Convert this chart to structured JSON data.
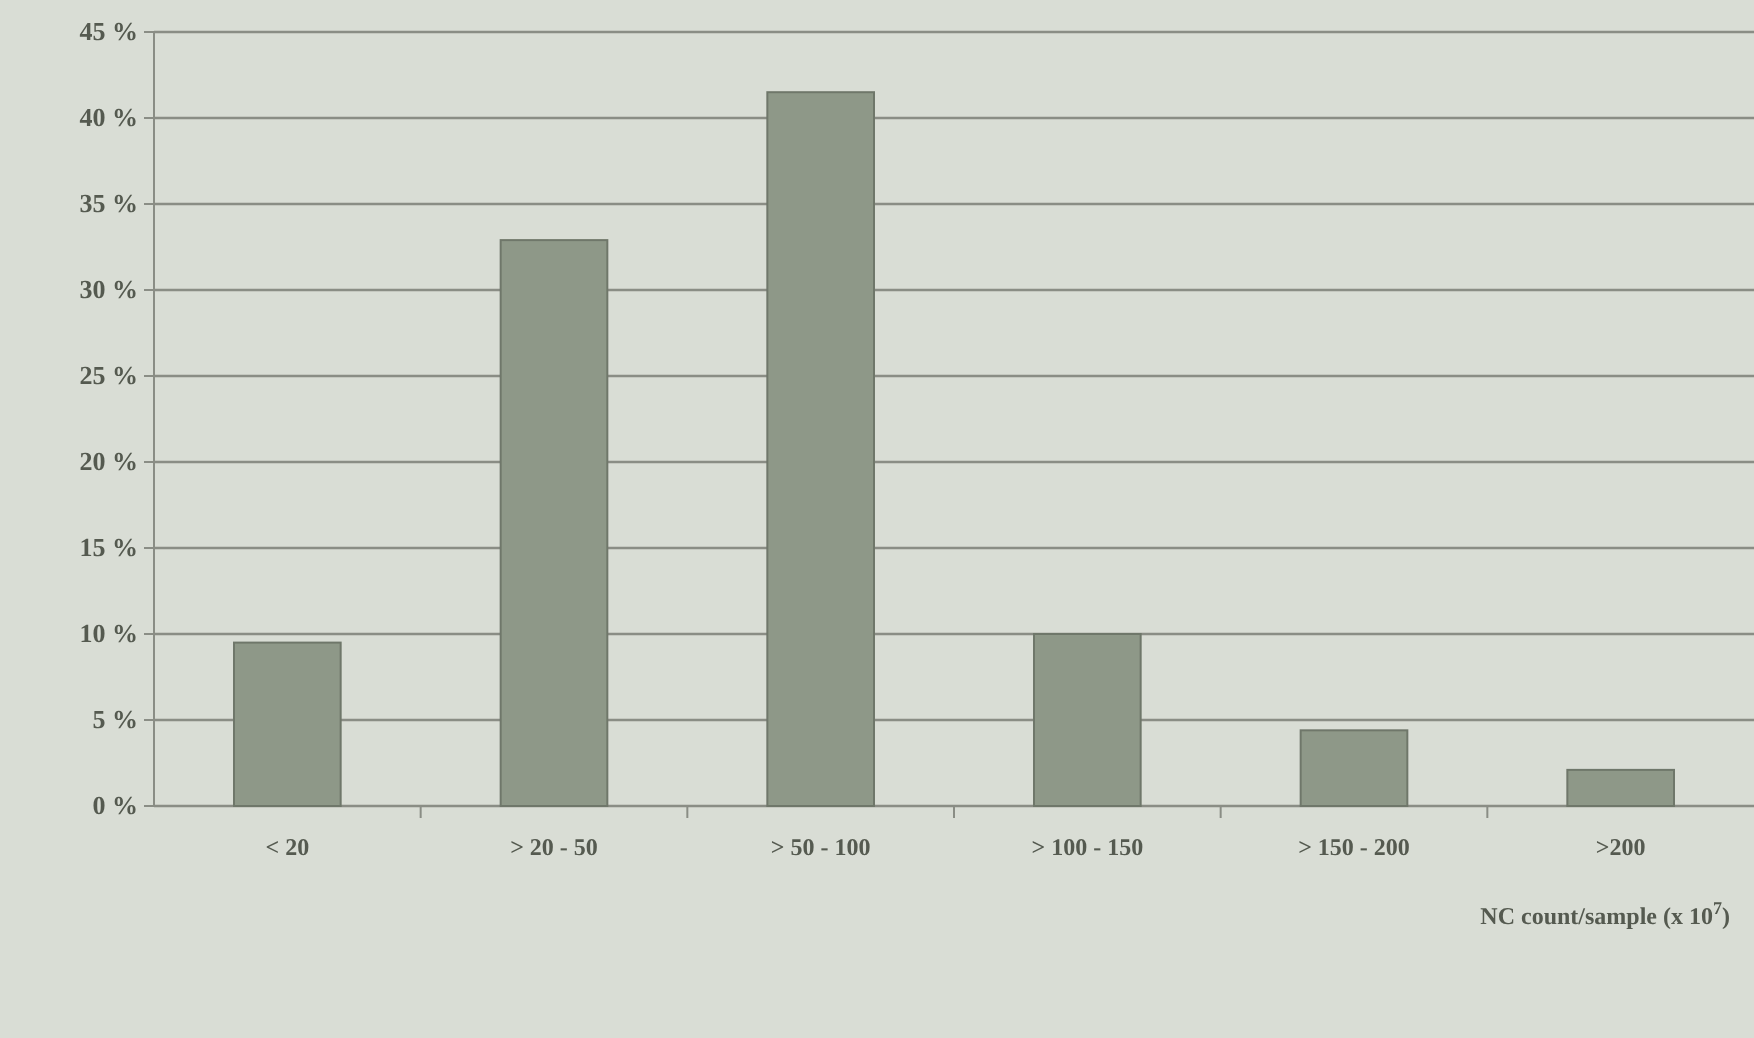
{
  "chart_data": {
    "type": "bar",
    "xlabel": "NC count/sample (x 10$^{7}$)",
    "categories": [
      "< 20",
      "> 20 - 50",
      "> 50 - 100",
      "> 100 - 150",
      "> 150 - 200",
      ">200"
    ],
    "values": [
      9.5,
      32.9,
      41.5,
      10.0,
      4.4,
      2.1
    ],
    "color": "#8e9888",
    "ylim": [
      0,
      45
    ],
    "yticks": [
      {
        "value": 0,
        "label": "0 %"
      },
      {
        "value": 5,
        "label": "5 %"
      },
      {
        "value": 10,
        "label": "10 %"
      },
      {
        "value": 15,
        "label": "15 %"
      },
      {
        "value": 20,
        "label": "20 %"
      },
      {
        "value": 25,
        "label": "25 %"
      },
      {
        "value": 30,
        "label": "30 %"
      },
      {
        "value": 35,
        "label": "35 %"
      },
      {
        "value": 40,
        "label": "40 %"
      },
      {
        "value": 45,
        "label": "45 %"
      }
    ],
    "grid": "y"
  }
}
